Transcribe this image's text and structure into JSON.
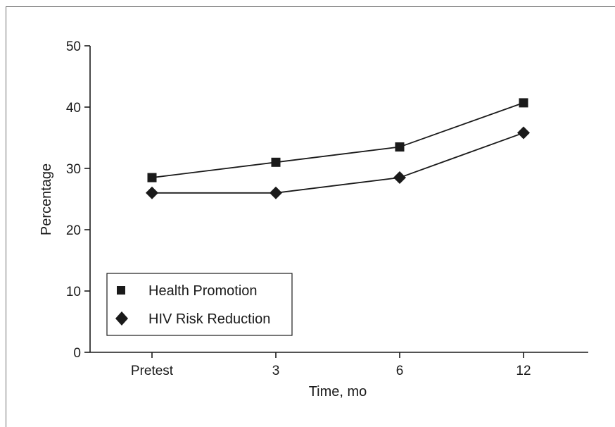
{
  "chart_data": {
    "type": "line",
    "title": "",
    "xlabel": "Time, mo",
    "ylabel": "Percentage",
    "categories": [
      "Pretest",
      "3",
      "6",
      "12"
    ],
    "y_ticks": [
      "0",
      "10",
      "20",
      "30",
      "40",
      "50"
    ],
    "ylim": [
      0,
      50
    ],
    "grid": false,
    "legend_position": "bottom-left",
    "series": [
      {
        "name": "Health Promotion",
        "marker": "square",
        "values": [
          28.5,
          31.0,
          33.5,
          40.7
        ]
      },
      {
        "name": "HIV Risk Reduction",
        "marker": "diamond",
        "values": [
          26.0,
          26.0,
          28.5,
          35.8
        ]
      }
    ],
    "colors": {
      "ink": "#1a1a1a",
      "frame": "#6e6e6e"
    }
  }
}
